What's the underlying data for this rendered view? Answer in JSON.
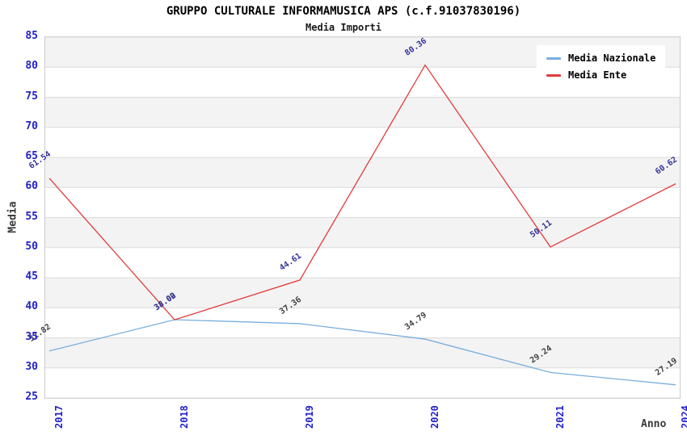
{
  "title": "GRUPPO CULTURALE INFORMAMUSICA APS (c.f.91037830196)",
  "subtitle": "Media Importi",
  "chart_data": {
    "type": "line",
    "title": "GRUPPO CULTURALE INFORMAMUSICA APS (c.f.91037830196)",
    "subtitle": "Media Importi",
    "categories": [
      "2017",
      "2018",
      "2019",
      "2020",
      "2021",
      "2024"
    ],
    "series": [
      {
        "name": "Media Nazionale",
        "color": "#78aedd",
        "label_color": "#404040",
        "values": [
          32.82,
          38.02,
          37.36,
          34.79,
          29.24,
          27.19
        ]
      },
      {
        "name": "Media Ente",
        "color": "#e23b3b",
        "label_color": "#333399",
        "values": [
          61.54,
          38.0,
          44.61,
          80.36,
          50.11,
          60.62
        ]
      }
    ],
    "xlabel": "Anno",
    "ylabel": "Media",
    "ylim": [
      25,
      85
    ],
    "ytick_step": 5,
    "yticks": [
      25,
      30,
      35,
      40,
      45,
      50,
      55,
      60,
      65,
      70,
      75,
      80,
      85
    ],
    "grid": "horizontal-bands-alternating",
    "legend_position": "top-right",
    "data_label_decimals": 2,
    "data_label_rotation_deg": -35
  },
  "colors": {
    "band_gray": "#f3f3f3",
    "band_white": "#ffffff",
    "gridline": "#dcdcdc",
    "tick_label": "#2222cc",
    "axis_title": "#3a3a3a",
    "plot_border": "#cccccc"
  }
}
